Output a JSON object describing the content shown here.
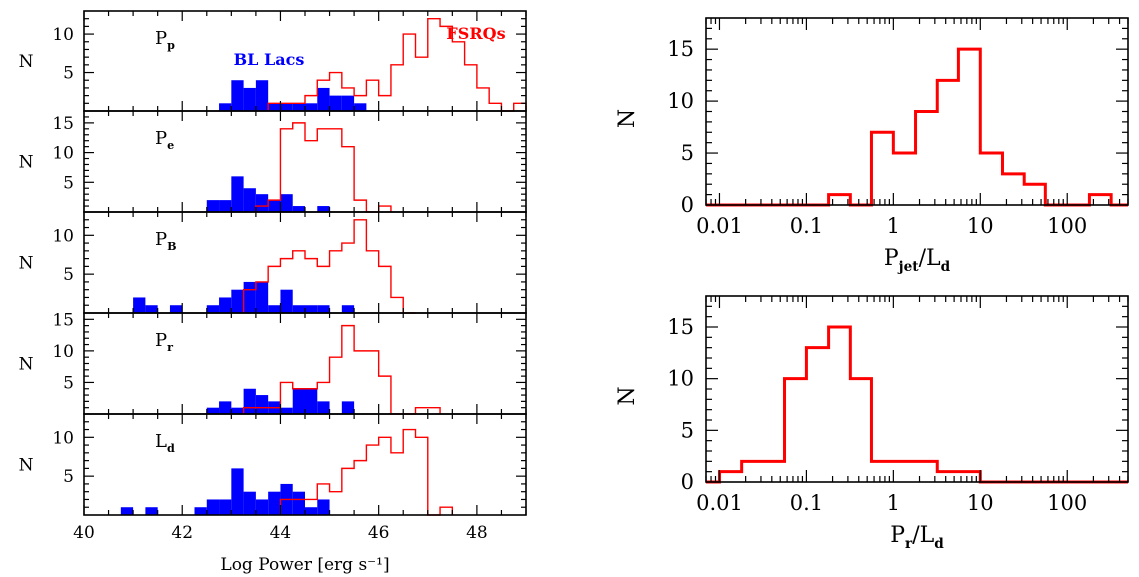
{
  "chart_data": [
    {
      "type": "bar",
      "panel": "Pp",
      "label_main": "P",
      "label_sub": "p",
      "ylabel": "N",
      "xlim": [
        40,
        49
      ],
      "ylim": [
        0,
        13
      ],
      "yticks": [
        5,
        10
      ],
      "bin_width": 0.25,
      "series": [
        {
          "name": "BL Lacs",
          "bins": [
            [
              42.75,
              1
            ],
            [
              43.0,
              4
            ],
            [
              43.25,
              3
            ],
            [
              43.5,
              4
            ],
            [
              43.75,
              1
            ],
            [
              44.0,
              1
            ],
            [
              44.25,
              1
            ],
            [
              44.5,
              1
            ],
            [
              44.75,
              3
            ],
            [
              45.0,
              2
            ],
            [
              45.25,
              2
            ],
            [
              45.5,
              1
            ]
          ]
        },
        {
          "name": "FSRQs",
          "bins": [
            [
              43.75,
              1
            ],
            [
              44.0,
              1
            ],
            [
              44.25,
              1
            ],
            [
              44.5,
              2
            ],
            [
              44.75,
              4
            ],
            [
              45.0,
              5
            ],
            [
              45.25,
              3
            ],
            [
              45.5,
              2
            ],
            [
              45.75,
              4
            ],
            [
              46.0,
              2
            ],
            [
              46.25,
              6
            ],
            [
              46.5,
              10
            ],
            [
              46.75,
              7
            ],
            [
              47.0,
              12
            ],
            [
              47.25,
              11
            ],
            [
              47.5,
              9
            ],
            [
              47.75,
              6
            ],
            [
              48.0,
              3
            ],
            [
              48.25,
              1
            ],
            [
              48.5,
              0
            ],
            [
              48.75,
              1
            ]
          ]
        }
      ],
      "annotations": [
        {
          "text": "BL Lacs",
          "color": "#0000ff"
        },
        {
          "text": "FSRQs",
          "color": "#ff0000"
        }
      ]
    },
    {
      "type": "bar",
      "panel": "Pe",
      "label_main": "P",
      "label_sub": "e",
      "ylabel": "N",
      "xlim": [
        40,
        49
      ],
      "ylim": [
        0,
        17
      ],
      "yticks": [
        5,
        10,
        15
      ],
      "bin_width": 0.25,
      "series": [
        {
          "name": "BL Lacs",
          "bins": [
            [
              42.5,
              2
            ],
            [
              42.75,
              2
            ],
            [
              43.0,
              6
            ],
            [
              43.25,
              4
            ],
            [
              43.5,
              3
            ],
            [
              43.75,
              2
            ],
            [
              44.0,
              3
            ],
            [
              44.25,
              1
            ],
            [
              44.75,
              1
            ]
          ]
        },
        {
          "name": "FSRQs",
          "bins": [
            [
              43.5,
              1
            ],
            [
              43.75,
              2
            ],
            [
              44.0,
              14
            ],
            [
              44.25,
              15
            ],
            [
              44.5,
              12
            ],
            [
              44.75,
              14
            ],
            [
              45.0,
              14
            ],
            [
              45.25,
              11
            ],
            [
              45.5,
              2
            ],
            [
              45.75,
              0
            ],
            [
              46.0,
              1
            ]
          ]
        }
      ]
    },
    {
      "type": "bar",
      "panel": "PB",
      "label_main": "P",
      "label_sub": "B",
      "ylabel": "N",
      "xlim": [
        40,
        49
      ],
      "ylim": [
        0,
        13
      ],
      "yticks": [
        5,
        10
      ],
      "bin_width": 0.25,
      "series": [
        {
          "name": "BL Lacs",
          "bins": [
            [
              41.0,
              2
            ],
            [
              41.25,
              1
            ],
            [
              41.75,
              1
            ],
            [
              42.5,
              1
            ],
            [
              42.75,
              2
            ],
            [
              43.0,
              3
            ],
            [
              43.25,
              4
            ],
            [
              43.5,
              4
            ],
            [
              43.75,
              1
            ],
            [
              44.0,
              3
            ],
            [
              44.25,
              1
            ],
            [
              44.5,
              1
            ],
            [
              44.75,
              1
            ],
            [
              45.25,
              1
            ]
          ]
        },
        {
          "name": "FSRQs",
          "bins": [
            [
              43.25,
              3
            ],
            [
              43.5,
              4
            ],
            [
              43.75,
              6
            ],
            [
              44.0,
              7
            ],
            [
              44.25,
              8
            ],
            [
              44.5,
              7
            ],
            [
              44.75,
              6
            ],
            [
              45.0,
              8
            ],
            [
              45.25,
              9
            ],
            [
              45.5,
              12
            ],
            [
              45.75,
              8
            ],
            [
              46.0,
              6
            ],
            [
              46.25,
              2
            ],
            [
              46.5,
              0
            ]
          ]
        }
      ]
    },
    {
      "type": "bar",
      "panel": "Pr",
      "label_main": "P",
      "label_sub": "r",
      "ylabel": "N",
      "xlim": [
        40,
        49
      ],
      "ylim": [
        0,
        16
      ],
      "yticks": [
        5,
        10,
        15
      ],
      "bin_width": 0.25,
      "series": [
        {
          "name": "BL Lacs",
          "bins": [
            [
              42.5,
              1
            ],
            [
              42.75,
              2
            ],
            [
              43.0,
              1
            ],
            [
              43.25,
              4
            ],
            [
              43.5,
              3
            ],
            [
              43.75,
              2
            ],
            [
              44.0,
              1
            ],
            [
              44.25,
              4
            ],
            [
              44.5,
              4
            ],
            [
              44.75,
              2
            ],
            [
              45.25,
              2
            ]
          ]
        },
        {
          "name": "FSRQs",
          "bins": [
            [
              43.25,
              1
            ],
            [
              43.5,
              1
            ],
            [
              43.75,
              1
            ],
            [
              44.0,
              5
            ],
            [
              44.25,
              4
            ],
            [
              44.5,
              4
            ],
            [
              44.75,
              5
            ],
            [
              45.0,
              9
            ],
            [
              45.25,
              14
            ],
            [
              45.5,
              10
            ],
            [
              45.75,
              10
            ],
            [
              46.0,
              6
            ],
            [
              46.25,
              0
            ],
            [
              46.5,
              0
            ],
            [
              46.75,
              1
            ],
            [
              47.0,
              1
            ]
          ]
        }
      ]
    },
    {
      "type": "bar",
      "panel": "Ld",
      "label_main": "L",
      "label_sub": "d",
      "ylabel": "N",
      "xlabel": "Log Power [erg s⁻¹]",
      "xlim": [
        40,
        49
      ],
      "ylim": [
        0,
        13
      ],
      "yticks": [
        5,
        10
      ],
      "xticks": [
        40,
        42,
        44,
        46,
        48
      ],
      "bin_width": 0.25,
      "series": [
        {
          "name": "BL Lacs",
          "bins": [
            [
              40.75,
              1
            ],
            [
              41.25,
              1
            ],
            [
              42.25,
              1
            ],
            [
              42.5,
              2
            ],
            [
              42.75,
              2
            ],
            [
              43.0,
              6
            ],
            [
              43.25,
              3
            ],
            [
              43.5,
              2
            ],
            [
              43.75,
              3
            ],
            [
              44.0,
              4
            ],
            [
              44.25,
              3
            ],
            [
              44.5,
              1
            ],
            [
              44.75,
              2
            ]
          ]
        },
        {
          "name": "FSRQs",
          "bins": [
            [
              44.0,
              2
            ],
            [
              44.25,
              2
            ],
            [
              44.5,
              2
            ],
            [
              44.75,
              4
            ],
            [
              45.0,
              3
            ],
            [
              45.25,
              6
            ],
            [
              45.5,
              7
            ],
            [
              45.75,
              9
            ],
            [
              46.0,
              10
            ],
            [
              46.25,
              8
            ],
            [
              46.5,
              11
            ],
            [
              46.75,
              10
            ],
            [
              47.0,
              0
            ],
            [
              47.25,
              1
            ]
          ]
        }
      ]
    },
    {
      "type": "bar",
      "panel": "Pjet_Ld",
      "xscale": "log",
      "xlabel_main": "P",
      "xlabel_sub1": "jet",
      "xlabel_mid": "/L",
      "xlabel_sub2": "d",
      "ylabel": "N",
      "xlim": [
        0.007,
        500
      ],
      "ylim": [
        0,
        18
      ],
      "yticks": [
        0,
        5,
        10,
        15
      ],
      "xticks": [
        0.01,
        0.1,
        1,
        10,
        100
      ],
      "xtick_labels": [
        "0.01",
        "0.1",
        "1",
        "10",
        "100"
      ],
      "edges": [
        0.007,
        0.18,
        0.32,
        0.56,
        1.0,
        1.8,
        3.2,
        5.6,
        10,
        18,
        32,
        56,
        180,
        320,
        500
      ],
      "values": [
        0,
        1,
        0,
        7,
        5,
        9,
        12,
        15,
        5,
        3,
        2,
        0,
        1,
        0
      ],
      "color": "#ff0000"
    },
    {
      "type": "bar",
      "panel": "Pr_Ld",
      "xscale": "log",
      "xlabel_main": "P",
      "xlabel_sub1": "r",
      "xlabel_mid": "/L",
      "xlabel_sub2": "d",
      "ylabel": "N",
      "xlim": [
        0.007,
        500
      ],
      "ylim": [
        0,
        18
      ],
      "yticks": [
        0,
        5,
        10,
        15
      ],
      "xticks": [
        0.01,
        0.1,
        1,
        10,
        100
      ],
      "xtick_labels": [
        "0.01",
        "0.1",
        "1",
        "10",
        "100"
      ],
      "edges": [
        0.01,
        0.018,
        0.056,
        0.1,
        0.18,
        0.32,
        0.56,
        3.2,
        10,
        500
      ],
      "values": [
        1,
        2,
        10,
        13,
        15,
        10,
        2,
        1,
        0
      ],
      "color": "#ff0000"
    }
  ],
  "colors": {
    "bl_lacs": "#0000ff",
    "fsrqs": "#ff0000",
    "axes": "#000000"
  }
}
